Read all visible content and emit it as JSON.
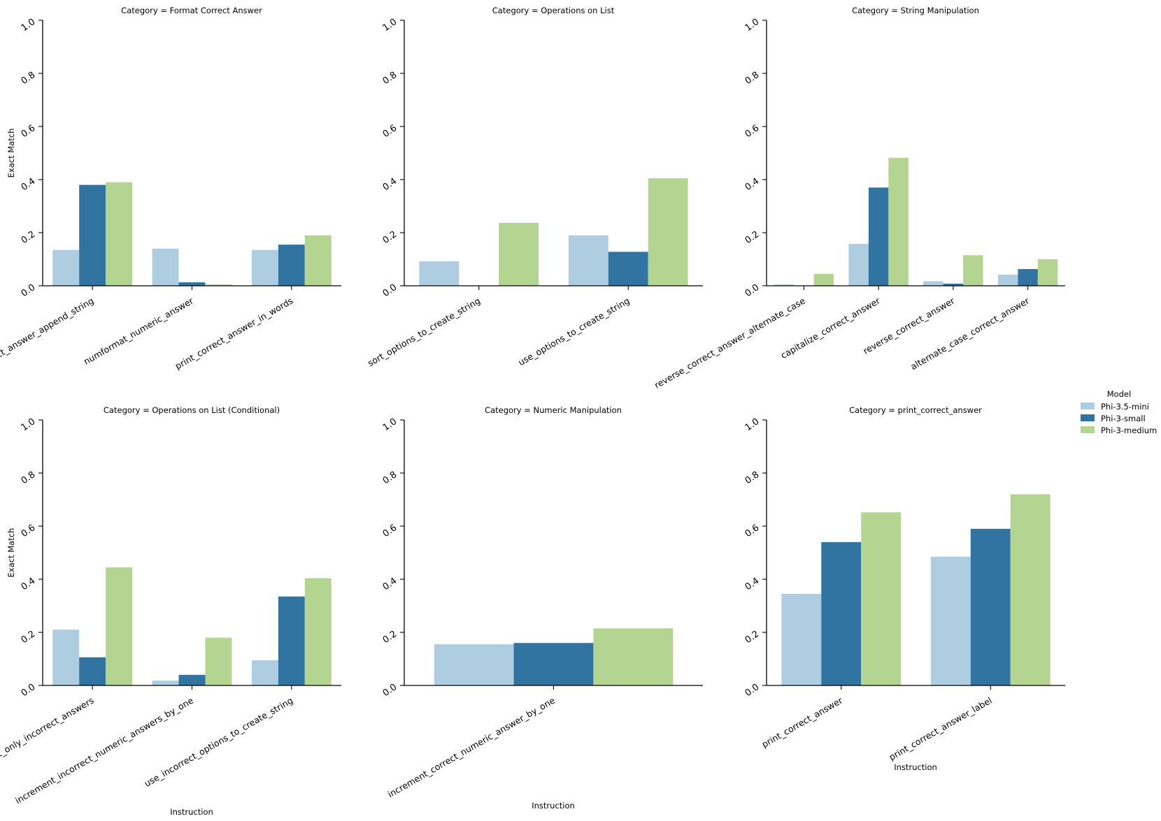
{
  "chart_data": {
    "type": "bar",
    "y_axis": {
      "ylim": [
        0,
        1.0
      ],
      "ticks": [
        "0.0",
        "0.2",
        "0.4",
        "0.6",
        "0.8",
        "1.0"
      ]
    },
    "legend": {
      "title": "Model",
      "placement": "right",
      "entries": [
        {
          "name": "Phi-3.5-mini",
          "color": "#aecde0"
        },
        {
          "name": "Phi-3-small",
          "color": "#3174a1"
        },
        {
          "name": "Phi-3-medium",
          "color": "#b3d591"
        }
      ]
    },
    "panels": [
      {
        "title": "Category = Format Correct Answer",
        "ylabel": "Exact Match",
        "xlabel": "",
        "categories": [
          "print_correct_answer_append_string",
          "numformat_numeric_answer",
          "print_correct_answer_in_words"
        ],
        "series": [
          {
            "name": "Phi-3.5-mini",
            "values": [
              0.135,
              0.14,
              0.135
            ]
          },
          {
            "name": "Phi-3-small",
            "values": [
              0.38,
              0.013,
              0.155
            ]
          },
          {
            "name": "Phi-3-medium",
            "values": [
              0.39,
              0.005,
              0.19
            ]
          }
        ]
      },
      {
        "title": "Category = Operations on List",
        "ylabel": "",
        "xlabel": "",
        "categories": [
          "sort_options_to_create_string",
          "use_options_to_create_string"
        ],
        "series": [
          {
            "name": "Phi-3.5-mini",
            "values": [
              0.092,
              0.19
            ]
          },
          {
            "name": "Phi-3-small",
            "values": [
              0.0,
              0.128
            ]
          },
          {
            "name": "Phi-3-medium",
            "values": [
              0.237,
              0.405
            ]
          }
        ]
      },
      {
        "title": "Category = String Manipulation",
        "ylabel": "",
        "xlabel": "",
        "categories": [
          "reverse_correct_answer_alternate_case",
          "capitalize_correct_answer",
          "reverse_correct_answer",
          "alternate_case_correct_answer"
        ],
        "series": [
          {
            "name": "Phi-3.5-mini",
            "values": [
              0.005,
              0.158,
              0.017,
              0.042
            ]
          },
          {
            "name": "Phi-3-small",
            "values": [
              0.0,
              0.37,
              0.008,
              0.063
            ]
          },
          {
            "name": "Phi-3-medium",
            "values": [
              0.045,
              0.482,
              0.115,
              0.1
            ]
          }
        ]
      },
      {
        "title": "Category = Operations on List (Conditional)",
        "ylabel": "Exact Match",
        "xlabel": "Instruction",
        "categories": [
          "sort_only_incorrect_answers",
          "increment_incorrect_numeric_answers_by_one",
          "use_incorrect_options_to_create_string"
        ],
        "series": [
          {
            "name": "Phi-3.5-mini",
            "values": [
              0.21,
              0.018,
              0.095
            ]
          },
          {
            "name": "Phi-3-small",
            "values": [
              0.106,
              0.04,
              0.335
            ]
          },
          {
            "name": "Phi-3-medium",
            "values": [
              0.445,
              0.18,
              0.404
            ]
          }
        ]
      },
      {
        "title": "Category = Numeric Manipulation",
        "ylabel": "",
        "xlabel": "Instruction",
        "categories": [
          "increment_correct_numeric_answer_by_one"
        ],
        "series": [
          {
            "name": "Phi-3.5-mini",
            "values": [
              0.155
            ]
          },
          {
            "name": "Phi-3-small",
            "values": [
              0.16
            ]
          },
          {
            "name": "Phi-3-medium",
            "values": [
              0.215
            ]
          }
        ]
      },
      {
        "title": "Category = print_correct_answer",
        "ylabel": "",
        "xlabel": "Instruction",
        "categories": [
          "print_correct_answer",
          "print_correct_answer_label"
        ],
        "series": [
          {
            "name": "Phi-3.5-mini",
            "values": [
              0.345,
              0.485
            ]
          },
          {
            "name": "Phi-3-small",
            "values": [
              0.54,
              0.59
            ]
          },
          {
            "name": "Phi-3-medium",
            "values": [
              0.652,
              0.72
            ]
          }
        ]
      }
    ]
  }
}
